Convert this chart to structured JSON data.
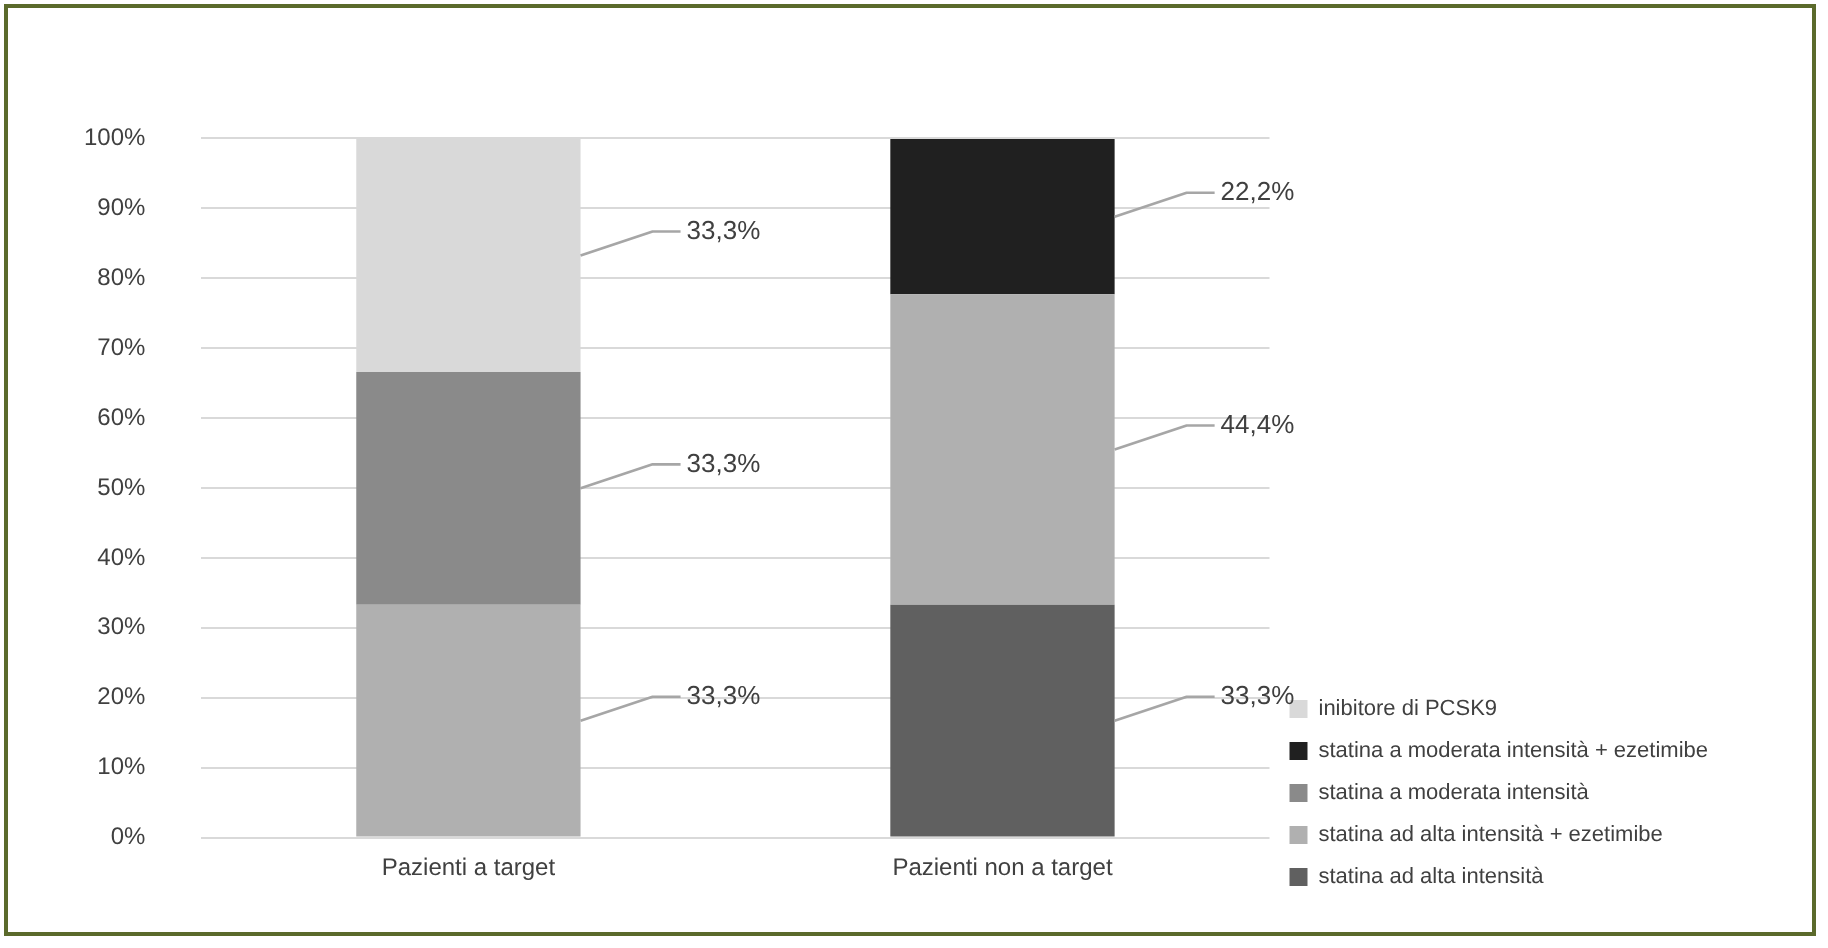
{
  "chart_data": {
    "type": "bar",
    "stacked": true,
    "categories": [
      "Pazienti a target",
      "Pazienti non a target"
    ],
    "series": [
      {
        "name": "statina ad alta intensità",
        "color": "#606060",
        "values": [
          null,
          33.3
        ],
        "value_labels": [
          null,
          "33,3%"
        ]
      },
      {
        "name": "statina ad alta intensità + ezetimibe",
        "color": "#b0b0b0",
        "values": [
          33.3,
          44.4
        ],
        "value_labels": [
          "33,3%",
          "44,4%"
        ]
      },
      {
        "name": "statina a moderata intensità",
        "color": "#8a8a8a",
        "values": [
          33.3,
          null
        ],
        "value_labels": [
          "33,3%",
          null
        ]
      },
      {
        "name": "statina a moderata intensità + ezetimibe",
        "color": "#202020",
        "values": [
          null,
          22.2
        ],
        "value_labels": [
          null,
          "22,2%"
        ]
      },
      {
        "name": "inibitore di PCSK9",
        "color": "#d9d9d9",
        "values": [
          33.3,
          null
        ],
        "value_labels": [
          "33,3%",
          null
        ]
      }
    ],
    "ylim": [
      0,
      100
    ],
    "yticks": [
      {
        "value": 0,
        "label": "0%"
      },
      {
        "value": 10,
        "label": "10%"
      },
      {
        "value": 20,
        "label": "20%"
      },
      {
        "value": 30,
        "label": "30%"
      },
      {
        "value": 40,
        "label": "40%"
      },
      {
        "value": 50,
        "label": "50%"
      },
      {
        "value": 60,
        "label": "60%"
      },
      {
        "value": 70,
        "label": "70%"
      },
      {
        "value": 80,
        "label": "80%"
      },
      {
        "value": 90,
        "label": "90%"
      },
      {
        "value": 100,
        "label": "100%"
      }
    ],
    "grid": "y",
    "legend": "right"
  }
}
